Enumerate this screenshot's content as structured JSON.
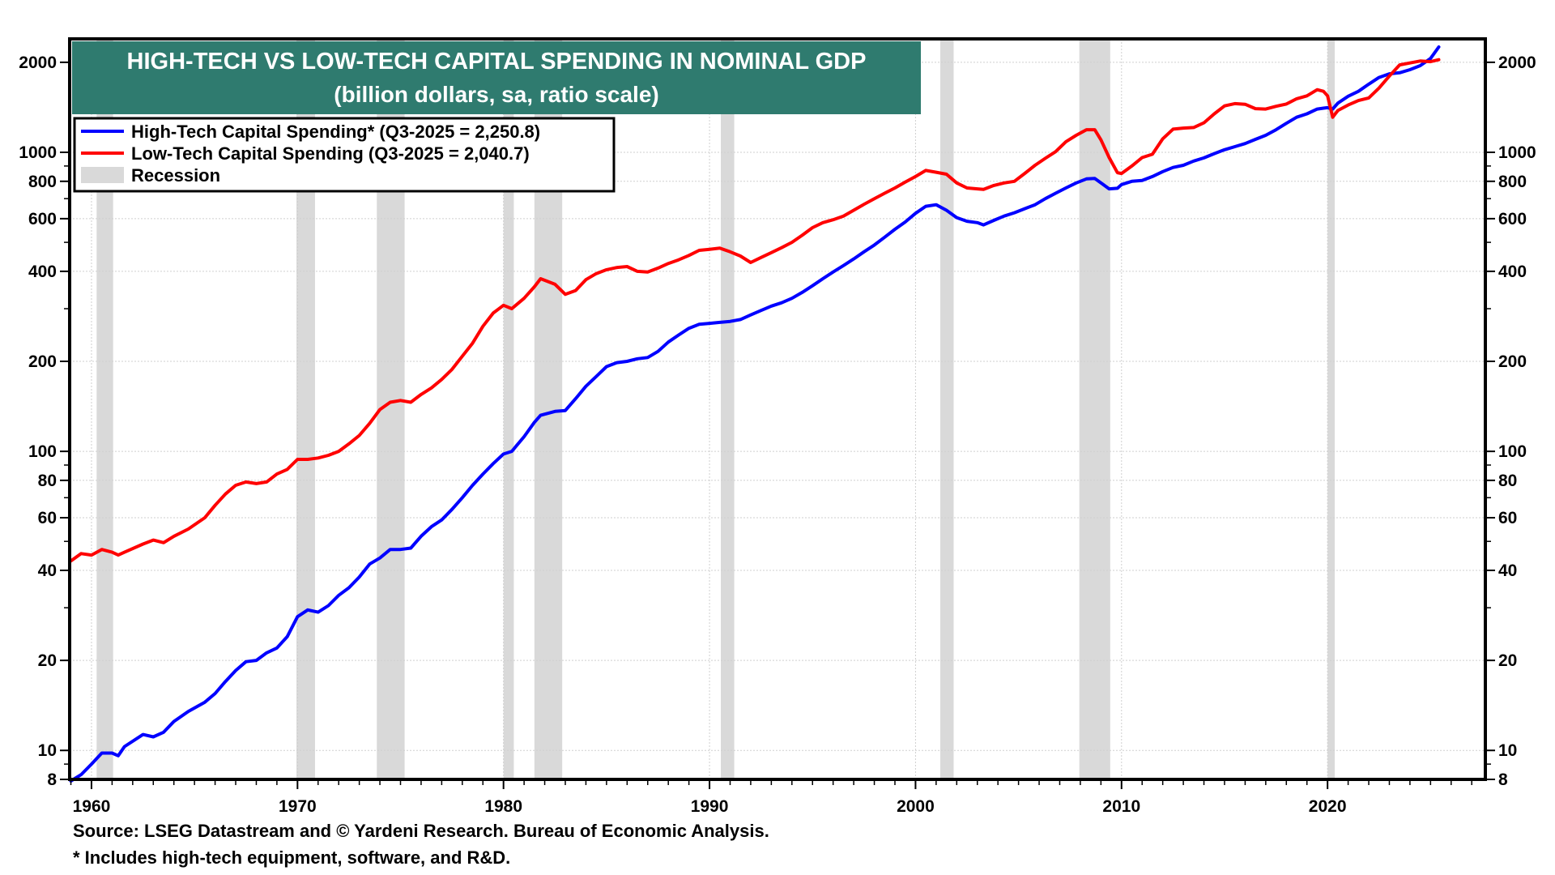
{
  "chart_data": {
    "type": "line",
    "title": "HIGH-TECH VS LOW-TECH CAPITAL SPENDING IN NOMINAL GDP",
    "subtitle": "(billion dollars, sa, ratio scale)",
    "xlabel": "",
    "ylabel": "",
    "y_scale": "log",
    "ylim": [
      8,
      2395
    ],
    "xlim": [
      1958.94,
      2027.66
    ],
    "grid": true,
    "legend_position": "top-left",
    "x_ticks": [
      1960,
      1970,
      1980,
      1990,
      2000,
      2010,
      2020
    ],
    "x_tick_labels": [
      "1960",
      "1970",
      "1980",
      "1990",
      "2000",
      "2010",
      "2020"
    ],
    "y_ticks": [
      8,
      10,
      20,
      40,
      60,
      80,
      100,
      200,
      400,
      600,
      800,
      1000,
      2000
    ],
    "y_tick_labels": [
      "8",
      "10",
      "20",
      "40",
      "60",
      "80",
      "100",
      "200",
      "400",
      "600",
      "800",
      "1000",
      "2000"
    ],
    "legend": [
      {
        "label": "High-Tech Capital Spending* (Q3-2025 = 2,250.8)",
        "color": "#0000ff",
        "kind": "line"
      },
      {
        "label": "Low-Tech Capital Spending (Q3-2025 = 2,040.7)",
        "color": "#ff0000",
        "kind": "line"
      },
      {
        "label": "Recession",
        "color": "#d9d9d9",
        "kind": "band"
      }
    ],
    "recessions": [
      [
        1960.25,
        1961.05
      ],
      [
        1969.95,
        1970.85
      ],
      [
        1973.85,
        1975.2
      ],
      [
        1980.0,
        1980.5
      ],
      [
        1981.5,
        1982.85
      ],
      [
        1990.55,
        1991.2
      ],
      [
        2001.2,
        2001.85
      ],
      [
        2007.95,
        2009.45
      ],
      [
        2020.0,
        2020.35
      ]
    ],
    "x": [
      1959.0,
      1959.5,
      1960.0,
      1960.5,
      1961.0,
      1961.3,
      1961.6,
      1962.5,
      1963.0,
      1963.5,
      1964.0,
      1964.7,
      1965.5,
      1966.0,
      1966.5,
      1967.0,
      1967.5,
      1968.0,
      1968.5,
      1969.0,
      1969.5,
      1970.0,
      1970.5,
      1971.0,
      1971.5,
      1972.0,
      1972.5,
      1973.0,
      1973.5,
      1974.0,
      1974.5,
      1975.0,
      1975.5,
      1976.0,
      1976.5,
      1977.0,
      1977.5,
      1978.0,
      1978.5,
      1979.0,
      1979.5,
      1980.0,
      1980.4,
      1981.0,
      1981.5,
      1981.8,
      1982.5,
      1983.0,
      1983.5,
      1984.0,
      1984.5,
      1985.0,
      1985.5,
      1986.0,
      1986.5,
      1987.0,
      1987.5,
      1988.0,
      1988.5,
      1989.0,
      1989.5,
      1990.0,
      1990.5,
      1991.0,
      1991.5,
      1992.0,
      1992.5,
      1993.0,
      1993.5,
      1994.0,
      1994.5,
      1995.0,
      1995.5,
      1996.0,
      1996.5,
      1997.0,
      1997.5,
      1998.0,
      1998.5,
      1999.0,
      1999.5,
      2000.0,
      2000.5,
      2001.0,
      2001.5,
      2002.0,
      2002.5,
      2003.0,
      2003.3,
      2003.8,
      2004.3,
      2004.8,
      2005.3,
      2005.8,
      2006.3,
      2006.8,
      2007.3,
      2007.8,
      2008.3,
      2008.7,
      2009.0,
      2009.4,
      2009.8,
      2010.0,
      2010.5,
      2011.0,
      2011.5,
      2012.0,
      2012.5,
      2013.0,
      2013.5,
      2014.0,
      2014.5,
      2015.0,
      2015.5,
      2016.0,
      2016.5,
      2017.0,
      2017.5,
      2018.0,
      2018.5,
      2019.0,
      2019.5,
      2019.8,
      2020.0,
      2020.25,
      2020.5,
      2021.0,
      2021.5,
      2022.0,
      2022.5,
      2023.0,
      2023.5,
      2024.0,
      2024.5,
      2025.0,
      2025.4
    ],
    "series": [
      {
        "name": "High-Tech Capital Spending*",
        "color": "#0000ff",
        "values": [
          7.9,
          8.3,
          9.0,
          9.8,
          9.8,
          9.6,
          10.3,
          11.3,
          11.1,
          11.5,
          12.5,
          13.5,
          14.5,
          15.5,
          17,
          18.5,
          19.8,
          20.0,
          21.2,
          22.0,
          24,
          28,
          29.5,
          29,
          30.5,
          33,
          35,
          38,
          42,
          44,
          47,
          47,
          47.5,
          52,
          56,
          59,
          64,
          70,
          77,
          84,
          91,
          98,
          100,
          112,
          125,
          132,
          136,
          137,
          150,
          165,
          178,
          192,
          198,
          200,
          204,
          206,
          216,
          232,
          245,
          258,
          266,
          268,
          270,
          272,
          276,
          286,
          296,
          306,
          314,
          325,
          340,
          358,
          378,
          398,
          418,
          440,
          465,
          490,
          520,
          553,
          585,
          625,
          660,
          668,
          640,
          605,
          588,
          582,
          572,
          592,
          612,
          628,
          648,
          668,
          700,
          730,
          760,
          790,
          815,
          818,
          790,
          755,
          758,
          780,
          800,
          805,
          830,
          862,
          890,
          905,
          935,
          958,
          990,
          1020,
          1045,
          1070,
          1105,
          1140,
          1190,
          1250,
          1310,
          1345,
          1395,
          1405,
          1410,
          1395,
          1460,
          1540,
          1600,
          1690,
          1780,
          1830,
          1845,
          1890,
          1950,
          2060,
          2250.8
        ]
      },
      {
        "name": "Low-Tech Capital Spending",
        "color": "#ff0000",
        "values": [
          43,
          45.5,
          45,
          47,
          46,
          45,
          46,
          49,
          50.5,
          49.5,
          52,
          55,
          60,
          66,
          72,
          77,
          79,
          78,
          79,
          84,
          87,
          94,
          94,
          95,
          97,
          100,
          106,
          113,
          124,
          138,
          146,
          148,
          146,
          155,
          163,
          174,
          188,
          208,
          230,
          262,
          290,
          308,
          300,
          325,
          355,
          378,
          362,
          335,
          345,
          375,
          393,
          405,
          412,
          415,
          400,
          398,
          410,
          425,
          437,
          452,
          470,
          474,
          478,
          465,
          450,
          428,
          445,
          462,
          480,
          500,
          528,
          560,
          582,
          595,
          612,
          640,
          670,
          700,
          730,
          760,
          795,
          830,
          870,
          858,
          845,
          790,
          760,
          755,
          752,
          775,
          790,
          800,
          850,
          905,
          955,
          1005,
          1085,
          1140,
          1190,
          1190,
          1100,
          960,
          855,
          850,
          900,
          960,
          985,
          1110,
          1195,
          1205,
          1210,
          1255,
          1345,
          1430,
          1455,
          1448,
          1400,
          1395,
          1425,
          1450,
          1510,
          1545,
          1620,
          1600,
          1545,
          1310,
          1380,
          1440,
          1490,
          1520,
          1640,
          1800,
          1960,
          1990,
          2020,
          2010,
          2040.7
        ]
      }
    ]
  },
  "footer": {
    "source": "Source: LSEG Datastream and © Yardeni Research. Bureau of Economic Analysis.",
    "note": "* Includes high-tech equipment, software, and R&D."
  }
}
